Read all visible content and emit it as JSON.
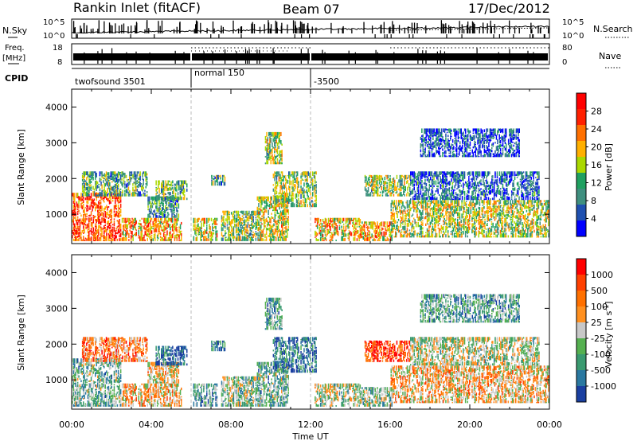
{
  "header": {
    "station": "Rankin Inlet (fitACF)",
    "beam": "Beam 07",
    "date": "17/Dec/2012"
  },
  "summary": {
    "nsky_label": "N.Sky",
    "nsearch_label": "N.Search",
    "nsky_ticks": [
      "10^5",
      "10^0"
    ],
    "nsearch_ticks": [
      "10^5",
      "10^0"
    ],
    "freq_label_line1": "Freq.",
    "freq_label_line2": "[MHz]",
    "freq_ticks": [
      "18",
      "8"
    ],
    "nave_label": "Nave",
    "nave_ticks": [
      "80",
      "0"
    ],
    "cpid_label": "CPID",
    "cpid_segments": [
      {
        "start_h": 0,
        "end_h": 6,
        "label": "twofsound 3501"
      },
      {
        "start_h": 6,
        "end_h": 12,
        "label": "normal 150"
      },
      {
        "start_h": 12,
        "end_h": 24,
        "label": "-3500"
      }
    ]
  },
  "chart_data": [
    {
      "type": "heatmap",
      "panel": "power",
      "ylabel": "Slant Range [km]",
      "x_range_hours": [
        0,
        24
      ],
      "ylim": [
        180,
        4500
      ],
      "yticks": [
        "1000",
        "2000",
        "3000",
        "4000"
      ],
      "colorbar": {
        "label": "Power [dB]",
        "ticks": [
          "28",
          "24",
          "20",
          "16",
          "12",
          "8",
          "4"
        ],
        "range": [
          0,
          30
        ],
        "colors": [
          "#0000ff",
          "#1f50b0",
          "#3f8f7f",
          "#1fa060",
          "#aad800",
          "#ffb000",
          "#ff7000",
          "#ff2000",
          "#ff0000"
        ]
      },
      "echo_regions": [
        {
          "t0": 0.0,
          "t1": 2.5,
          "r0": 250,
          "r1": 1600,
          "level": 0.8
        },
        {
          "t0": 0.5,
          "t1": 3.8,
          "r0": 1500,
          "r1": 2200,
          "level": 0.35
        },
        {
          "t0": 2.5,
          "t1": 5.5,
          "r0": 250,
          "r1": 900,
          "level": 0.65
        },
        {
          "t0": 3.8,
          "t1": 5.4,
          "r0": 900,
          "r1": 1500,
          "level": 0.3
        },
        {
          "t0": 4.2,
          "t1": 5.8,
          "r0": 1400,
          "r1": 1950,
          "level": 0.4
        },
        {
          "t0": 6.1,
          "t1": 7.3,
          "r0": 250,
          "r1": 900,
          "level": 0.55
        },
        {
          "t0": 7.0,
          "t1": 7.7,
          "r0": 1800,
          "r1": 2100,
          "level": 0.35
        },
        {
          "t0": 7.5,
          "t1": 9.5,
          "r0": 250,
          "r1": 1100,
          "level": 0.45
        },
        {
          "t0": 9.3,
          "t1": 10.9,
          "r0": 250,
          "r1": 1500,
          "level": 0.55
        },
        {
          "t0": 9.7,
          "t1": 10.6,
          "r0": 2400,
          "r1": 3300,
          "level": 0.45
        },
        {
          "t0": 10.1,
          "t1": 12.3,
          "r0": 1200,
          "r1": 2200,
          "level": 0.45
        },
        {
          "t0": 12.2,
          "t1": 14.5,
          "r0": 250,
          "r1": 900,
          "level": 0.6
        },
        {
          "t0": 14.5,
          "t1": 16.1,
          "r0": 250,
          "r1": 800,
          "level": 0.65
        },
        {
          "t0": 14.7,
          "t1": 17.0,
          "r0": 1500,
          "r1": 2100,
          "level": 0.45
        },
        {
          "t0": 16.0,
          "t1": 24.0,
          "r0": 350,
          "r1": 1400,
          "level": 0.5
        },
        {
          "t0": 17.0,
          "t1": 23.5,
          "r0": 1400,
          "r1": 2200,
          "level": 0.2
        },
        {
          "t0": 17.5,
          "t1": 22.5,
          "r0": 2600,
          "r1": 3400,
          "level": 0.15
        }
      ]
    },
    {
      "type": "heatmap",
      "panel": "velocity",
      "ylabel": "Slant Range [km]",
      "xlabel": "Time UT",
      "x_range_hours": [
        0,
        24
      ],
      "xticks": [
        "00:00",
        "04:00",
        "08:00",
        "12:00",
        "16:00",
        "20:00",
        "00:00"
      ],
      "ylim": [
        180,
        4500
      ],
      "yticks": [
        "1000",
        "2000",
        "3000",
        "4000"
      ],
      "colorbar": {
        "label": "Velocity [m s-1]",
        "label_main": "Velocity [m s",
        "label_sup": "-1",
        "label_end": "]",
        "ticks": [
          "1000",
          "500",
          "100",
          "25",
          "-25",
          "-100",
          "-500",
          "-1000"
        ],
        "colors": [
          "#1a3fa0",
          "#2a78a0",
          "#3a9a70",
          "#55b050",
          "#c8c8c8",
          "#ff9020",
          "#ff7000",
          "#ff4000",
          "#ff0000"
        ]
      },
      "echo_regions": [
        {
          "t0": 0.0,
          "t1": 2.5,
          "r0": 250,
          "r1": 1600,
          "level": 0.35
        },
        {
          "t0": 0.5,
          "t1": 3.8,
          "r0": 1500,
          "r1": 2200,
          "level": 0.7
        },
        {
          "t0": 2.5,
          "t1": 5.5,
          "r0": 250,
          "r1": 900,
          "level": 0.6
        },
        {
          "t0": 3.8,
          "t1": 5.4,
          "r0": 900,
          "r1": 1500,
          "level": 0.55
        },
        {
          "t0": 4.2,
          "t1": 5.8,
          "r0": 1400,
          "r1": 1950,
          "level": 0.1
        },
        {
          "t0": 6.1,
          "t1": 7.3,
          "r0": 250,
          "r1": 900,
          "level": 0.3
        },
        {
          "t0": 7.0,
          "t1": 7.7,
          "r0": 1800,
          "r1": 2100,
          "level": 0.2
        },
        {
          "t0": 7.5,
          "t1": 9.5,
          "r0": 250,
          "r1": 1100,
          "level": 0.4
        },
        {
          "t0": 9.3,
          "t1": 10.9,
          "r0": 250,
          "r1": 1500,
          "level": 0.35
        },
        {
          "t0": 9.7,
          "t1": 10.6,
          "r0": 2400,
          "r1": 3300,
          "level": 0.3
        },
        {
          "t0": 10.1,
          "t1": 12.3,
          "r0": 1200,
          "r1": 2200,
          "level": 0.15
        },
        {
          "t0": 12.2,
          "t1": 14.5,
          "r0": 250,
          "r1": 900,
          "level": 0.45
        },
        {
          "t0": 14.5,
          "t1": 16.1,
          "r0": 250,
          "r1": 800,
          "level": 0.4
        },
        {
          "t0": 14.7,
          "t1": 17.0,
          "r0": 1500,
          "r1": 2100,
          "level": 0.85
        },
        {
          "t0": 16.0,
          "t1": 24.0,
          "r0": 350,
          "r1": 1400,
          "level": 0.6
        },
        {
          "t0": 17.0,
          "t1": 23.5,
          "r0": 1400,
          "r1": 2200,
          "level": 0.45
        },
        {
          "t0": 17.5,
          "t1": 22.5,
          "r0": 2600,
          "r1": 3400,
          "level": 0.3
        }
      ]
    }
  ]
}
